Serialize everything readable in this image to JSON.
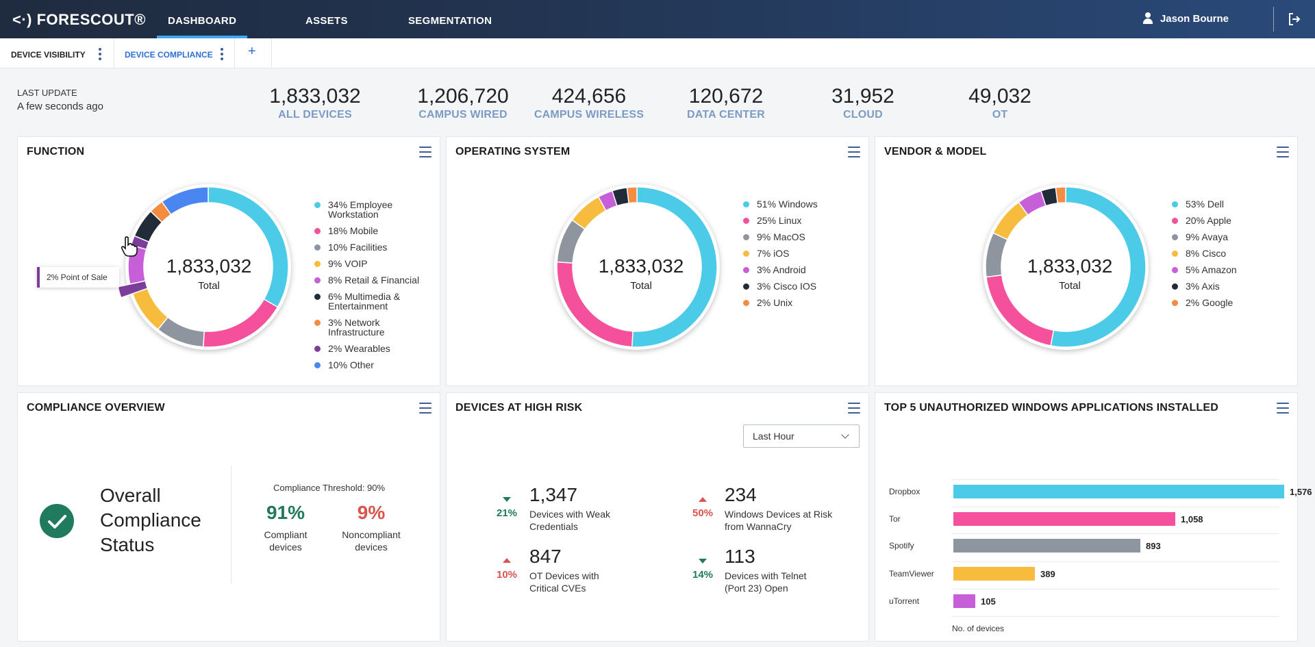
{
  "app": {
    "logo": "<·) FORESCOUT®"
  },
  "nav": {
    "tabs": [
      {
        "label": "DASHBOARD"
      },
      {
        "label": "ASSETS"
      },
      {
        "label": "SEGMENTATION"
      }
    ],
    "user": "Jason Bourne"
  },
  "subtabs": [
    {
      "label": "DEVICE VISIBILITY"
    },
    {
      "label": "DEVICE COMPLIANCE"
    }
  ],
  "last_update": {
    "label": "LAST UPDATE",
    "value": "A few seconds ago"
  },
  "stats": [
    {
      "num": "1,833,032",
      "label": "ALL DEVICES"
    },
    {
      "num": "1,206,720",
      "label": "CAMPUS WIRED"
    },
    {
      "num": "424,656",
      "label": "CAMPUS WIRELESS"
    },
    {
      "num": "120,672",
      "label": "DATA CENTER"
    },
    {
      "num": "31,952",
      "label": "CLOUD"
    },
    {
      "num": "49,032",
      "label": "OT"
    }
  ],
  "function": {
    "title": "FUNCTION",
    "total": "1,833,032",
    "total_label": "Total",
    "tooltip": "2% Point of Sale",
    "legend": [
      "34% Employee Workstation",
      "18% Mobile",
      "10% Facilities",
      "9% VOIP",
      "8% Retail & Financial",
      "6% Multimedia & Entertainment",
      "3% Network Infrastructure",
      "2% Wearables",
      "10% Other"
    ]
  },
  "os": {
    "title": "OPERATING SYSTEM",
    "total": "1,833,032",
    "total_label": "Total",
    "legend": [
      "51% Windows",
      "25% Linux",
      "9% MacOS",
      "7% iOS",
      "3% Android",
      "3% Cisco IOS",
      "2% Unix"
    ]
  },
  "vendor": {
    "title": "VENDOR & MODEL",
    "total": "1,833,032",
    "total_label": "Total",
    "legend": [
      "53% Dell",
      "20% Apple",
      "9% Avaya",
      "8% Cisco",
      "5% Amazon",
      "3% Axis",
      "2% Google"
    ]
  },
  "compliance": {
    "title": "COMPLIANCE OVERVIEW",
    "overall": [
      "Overall",
      "Compliance",
      "Status"
    ],
    "threshold": "Compliance Threshold: 90%",
    "compliant_pct": "91%",
    "compliant_label": [
      "Compliant",
      "devices"
    ],
    "noncompliant_pct": "9%",
    "noncompliant_label": [
      "Noncompliant",
      "devices"
    ]
  },
  "risk": {
    "title": "DEVICES AT HIGH RISK",
    "select": "Last Hour",
    "items": [
      {
        "pct": "21%",
        "num": "1,347",
        "desc": [
          "Devices with Weak",
          "Credentials"
        ]
      },
      {
        "pct": "50%",
        "num": "234",
        "desc": [
          "Windows Devices at Risk",
          "from WannaCry"
        ]
      },
      {
        "pct": "10%",
        "num": "847",
        "desc": [
          "OT Devices with",
          "Critical CVEs"
        ]
      },
      {
        "pct": "14%",
        "num": "113",
        "desc": [
          "Devices with Telnet",
          "(Port 23) Open"
        ]
      }
    ]
  },
  "apps": {
    "title": "TOP 5 UNAUTHORIZED WINDOWS APPLICATIONS INSTALLED",
    "axis": "No. of devices"
  },
  "chart_data": [
    {
      "type": "pie",
      "categories": [
        "Employee Workstation",
        "Mobile",
        "Facilities",
        "VOIP",
        "Retail & Financial",
        "Multimedia & Entertainment",
        "Network Infrastructure",
        "Wearables",
        "Other",
        "Point of Sale"
      ],
      "values": [
        34,
        18,
        10,
        9,
        8,
        6,
        3,
        2,
        10,
        2
      ],
      "colors": [
        "#4ccbe8",
        "#f4509b",
        "#8f959e",
        "#f7bb3d",
        "#c65fd8",
        "#222b38",
        "#f48c42",
        "#7c3c99",
        "#4a86f0",
        "#7c3c99"
      ]
    },
    {
      "type": "pie",
      "categories": [
        "Windows",
        "Linux",
        "MacOS",
        "iOS",
        "Android",
        "Cisco IOS",
        "Unix"
      ],
      "values": [
        51,
        25,
        9,
        7,
        3,
        3,
        2
      ],
      "colors": [
        "#4ccbe8",
        "#f4509b",
        "#8f959e",
        "#f7bb3d",
        "#c65fd8",
        "#222b38",
        "#f48c42"
      ]
    },
    {
      "type": "pie",
      "categories": [
        "Dell",
        "Apple",
        "Avaya",
        "Cisco",
        "Amazon",
        "Axis",
        "Google"
      ],
      "values": [
        53,
        20,
        9,
        8,
        5,
        3,
        2
      ],
      "colors": [
        "#4ccbe8",
        "#f4509b",
        "#8f959e",
        "#f7bb3d",
        "#c65fd8",
        "#222b38",
        "#f48c42"
      ]
    },
    {
      "type": "bar",
      "categories": [
        "Dropbox",
        "Tor",
        "Spotify",
        "TeamViewer",
        "uTorrent"
      ],
      "values": [
        1576,
        1058,
        893,
        389,
        105
      ],
      "value_labels": [
        "1,576",
        "1,058",
        "893",
        "389",
        "105"
      ],
      "xlabel": "No. of devices",
      "colors": [
        "#4ccbe8",
        "#f4509b",
        "#8f959e",
        "#f7bb3d",
        "#c65fd8"
      ]
    }
  ]
}
